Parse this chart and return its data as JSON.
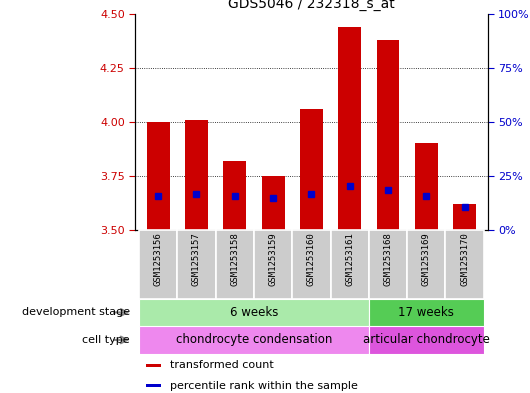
{
  "title": "GDS5046 / 232318_s_at",
  "samples": [
    "GSM1253156",
    "GSM1253157",
    "GSM1253158",
    "GSM1253159",
    "GSM1253160",
    "GSM1253161",
    "GSM1253168",
    "GSM1253169",
    "GSM1253170"
  ],
  "bar_tops": [
    4.0,
    4.01,
    3.82,
    3.75,
    4.06,
    4.44,
    4.38,
    3.9,
    3.62
  ],
  "bar_bottom": 3.5,
  "percentile_values": [
    0.155,
    0.165,
    0.155,
    0.148,
    0.165,
    0.205,
    0.185,
    0.155,
    0.108
  ],
  "ylim": [
    3.5,
    4.5
  ],
  "y2lim": [
    0,
    100
  ],
  "yticks": [
    3.5,
    3.75,
    4.0,
    4.25,
    4.5
  ],
  "y2ticks": [
    0,
    25,
    50,
    75,
    100
  ],
  "bar_color": "#cc0000",
  "blue_color": "#0000cc",
  "dev_stage_groups": [
    {
      "label": "6 weeks",
      "samples": [
        0,
        1,
        2,
        3,
        4,
        5
      ],
      "color": "#aaeaaa"
    },
    {
      "label": "17 weeks",
      "samples": [
        6,
        7,
        8
      ],
      "color": "#55cc55"
    }
  ],
  "cell_type_groups": [
    {
      "label": "chondrocyte condensation",
      "samples": [
        0,
        1,
        2,
        3,
        4,
        5
      ],
      "color": "#ee88ee"
    },
    {
      "label": "articular chondrocyte",
      "samples": [
        6,
        7,
        8
      ],
      "color": "#dd55dd"
    }
  ],
  "dev_stage_label": "development stage",
  "cell_type_label": "cell type",
  "legend_items": [
    {
      "label": "transformed count",
      "color": "#cc0000"
    },
    {
      "label": "percentile rank within the sample",
      "color": "#0000cc"
    }
  ],
  "title_fontsize": 10,
  "tick_fontsize": 8,
  "label_fontsize": 8,
  "bar_width": 0.6,
  "xticklabel_bg": "#cccccc",
  "arrow_color": "#888888"
}
